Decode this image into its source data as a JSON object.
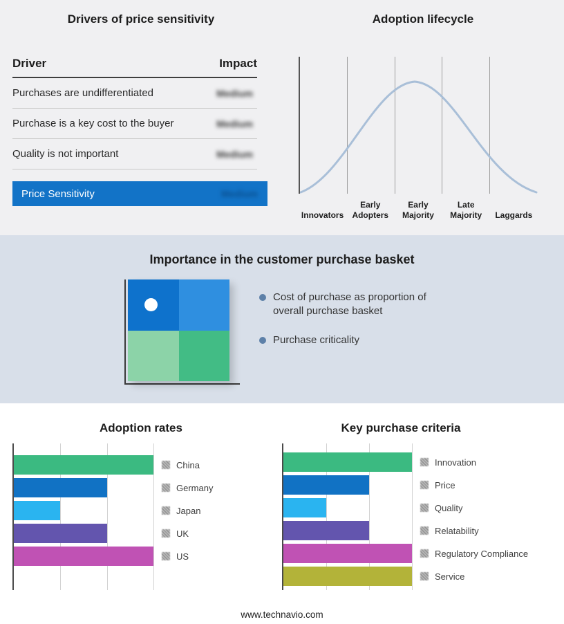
{
  "drivers": {
    "title": "Drivers of price sensitivity",
    "columns": {
      "driver": "Driver",
      "impact": "Impact"
    },
    "rows": [
      {
        "driver": "Purchases are undifferentiated",
        "impact": "Medium"
      },
      {
        "driver": "Purchase is a key cost to the buyer",
        "impact": "Medium"
      },
      {
        "driver": "Quality is not important",
        "impact": "Medium"
      }
    ],
    "summary": {
      "label": "Price Sensitivity",
      "impact": "Medium",
      "bg": "#1273c7"
    }
  },
  "lifecycle": {
    "title": "Adoption lifecycle",
    "stages": [
      "Innovators",
      "Early Adopters",
      "Early Majority",
      "Late Majority",
      "Laggards"
    ],
    "curve_color": "#a9bfd8"
  },
  "basket": {
    "title": "Importance in the customer purchase basket",
    "bullets": [
      "Cost of purchase as proportion of overall purchase basket",
      "Purchase criticality"
    ],
    "quadrants": {
      "top_left": "#0e72cc",
      "top_right": "#2f8fe0",
      "bottom_left": "#8cd3a8",
      "bottom_right": "#42bc85"
    }
  },
  "footer": "www.technavio.com",
  "chart_data": [
    {
      "id": "adoption-lifecycle",
      "type": "line",
      "title": "Adoption lifecycle",
      "x": [
        "Innovators",
        "Early Adopters",
        "Early Majority",
        "Late Majority",
        "Laggards"
      ],
      "values": [
        0.05,
        0.55,
        1.0,
        0.55,
        0.05
      ],
      "note": "Bell-shaped adoption curve peaking at Early Majority",
      "grid": true,
      "legend_position": "none"
    },
    {
      "id": "adoption-rates",
      "type": "bar",
      "orientation": "horizontal",
      "title": "Adoption rates",
      "categories": [
        "China",
        "Germany",
        "Japan",
        "UK",
        "US"
      ],
      "values": [
        3,
        2,
        1,
        2,
        3
      ],
      "colors": [
        "#3bba81",
        "#1172c4",
        "#2ab4f0",
        "#6355ae",
        "#c052b4"
      ],
      "xlim": [
        0,
        3
      ],
      "grid": true,
      "legend_position": "right"
    },
    {
      "id": "key-purchase-criteria",
      "type": "bar",
      "orientation": "horizontal",
      "title": "Key purchase criteria",
      "categories": [
        "Innovation",
        "Price",
        "Quality",
        "Relatability",
        "Regulatory Compliance",
        "Service"
      ],
      "values": [
        3,
        2,
        1,
        2,
        3,
        3
      ],
      "colors": [
        "#3bba81",
        "#1172c4",
        "#2ab4f0",
        "#6355ae",
        "#c052b4",
        "#b3b339"
      ],
      "xlim": [
        0,
        3
      ],
      "grid": true,
      "legend_position": "right"
    }
  ]
}
